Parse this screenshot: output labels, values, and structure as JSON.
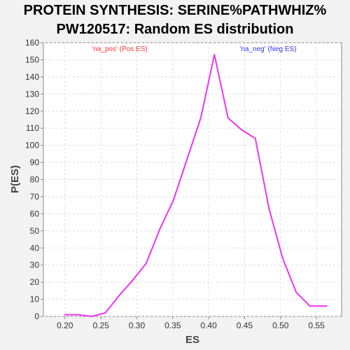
{
  "chart_data": {
    "type": "line",
    "title_line1": "PROTEIN SYNTHESIS: SERINE%PATHWHIZ%",
    "title_line2": "PW120517: Random ES distribution",
    "xlabel": "ES",
    "ylabel": "P(ES)",
    "xlim": [
      0.17,
      0.585
    ],
    "ylim": [
      0,
      160
    ],
    "x_ticks": [
      "0.20",
      "0.25",
      "0.30",
      "0.35",
      "0.40",
      "0.45",
      "0.50",
      "0.55"
    ],
    "x_tick_values": [
      0.2,
      0.25,
      0.3,
      0.35,
      0.4,
      0.45,
      0.5,
      0.55
    ],
    "y_ticks": [
      0,
      10,
      20,
      30,
      40,
      50,
      60,
      70,
      80,
      90,
      100,
      110,
      120,
      130,
      140,
      150,
      160
    ],
    "grid": true,
    "legend": [
      {
        "label": "'na_pos' (Pos ES)",
        "color": "#ff3333"
      },
      {
        "label": "'na_neg' (Neg ES)",
        "color": "#3333ff"
      }
    ],
    "series": [
      {
        "color": "#ee33ee",
        "x": [
          0.199,
          0.218,
          0.237,
          0.256,
          0.275,
          0.294,
          0.313,
          0.332,
          0.351,
          0.37,
          0.389,
          0.408,
          0.427,
          0.446,
          0.465,
          0.484,
          0.503,
          0.522,
          0.541,
          0.565
        ],
        "y": [
          1,
          1,
          0,
          2,
          12,
          21,
          31,
          51,
          68,
          92,
          116,
          153,
          116,
          109,
          104,
          63,
          34,
          14,
          6,
          6
        ]
      }
    ]
  }
}
